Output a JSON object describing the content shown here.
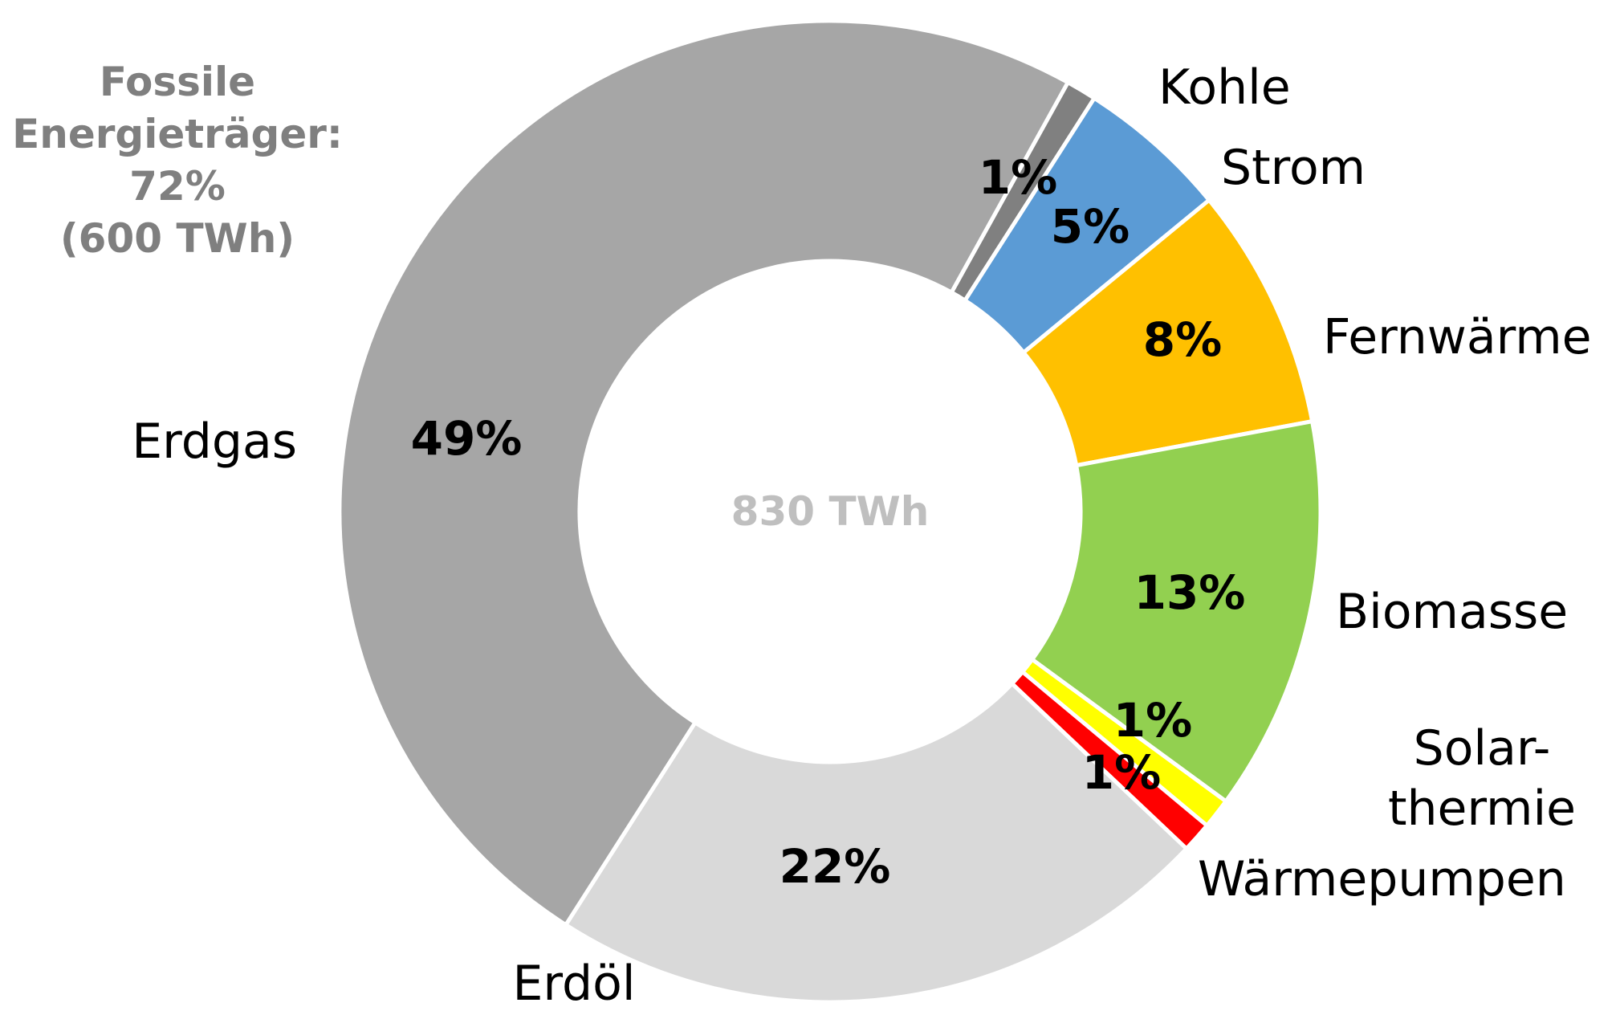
{
  "chart_data": {
    "type": "donut",
    "categories": [
      "Kohle",
      "Strom",
      "Fernwärme",
      "Biomasse",
      "Solar-\nthermie",
      "Wärmepumpen",
      "Erdöl",
      "Erdgas"
    ],
    "values": [
      1,
      5,
      8,
      13,
      1,
      1,
      22,
      49
    ],
    "value_labels": [
      "1%",
      "5%",
      "8%",
      "13%",
      "1%",
      "1%",
      "22%",
      "49%"
    ],
    "colors": [
      "#808080",
      "#5b9bd5",
      "#ffc000",
      "#92d050",
      "#ffff00",
      "#ff0000",
      "#d9d9d9",
      "#a6a6a6"
    ],
    "center_label": "830 TWh",
    "annotation": "Fossile\nEnergieträger:\n72%\n(600 TWh)"
  }
}
